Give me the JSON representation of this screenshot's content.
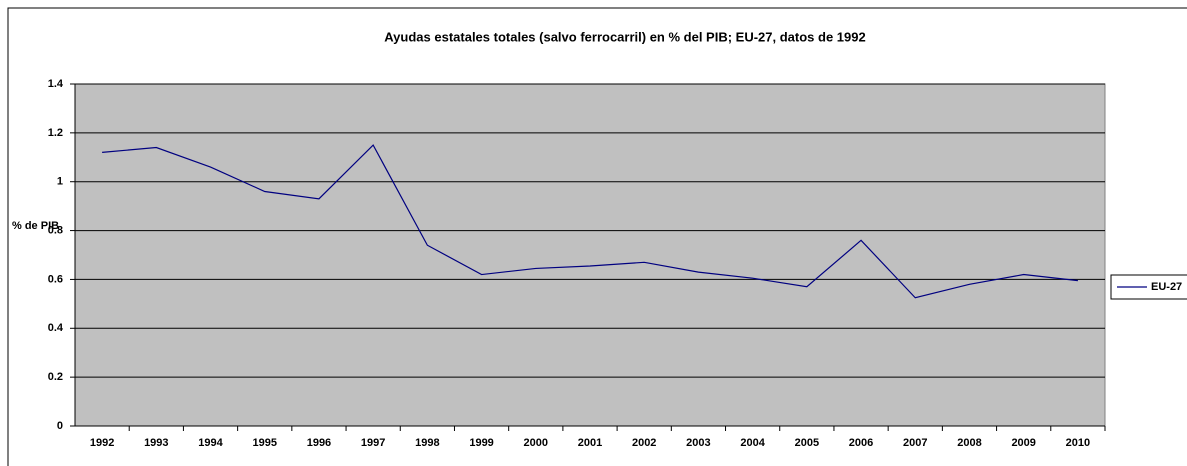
{
  "chart_data": {
    "type": "line",
    "title": "Ayudas estatales totales (salvo ferrocarril) en % del PIB; EU-27, datos de 1992",
    "y_label": "% de PIB",
    "categories": [
      "1992",
      "1993",
      "1994",
      "1995",
      "1996",
      "1997",
      "1998",
      "1999",
      "2000",
      "2001",
      "2002",
      "2003",
      "2004",
      "2005",
      "2006",
      "2007",
      "2008",
      "2009",
      "2010"
    ],
    "series": [
      {
        "name": "EU-27",
        "color": "#000080",
        "values": [
          1.12,
          1.14,
          1.06,
          0.96,
          0.93,
          1.15,
          0.74,
          0.62,
          0.645,
          0.655,
          0.67,
          0.63,
          0.605,
          0.57,
          0.76,
          0.525,
          0.58,
          0.62,
          0.595
        ]
      }
    ],
    "ylim": [
      0,
      1.4
    ],
    "yticks": [
      0,
      0.2,
      0.4,
      0.6,
      0.8,
      1,
      1.2,
      1.4
    ],
    "grid": true,
    "legend": "right",
    "plot_background": "#c0c0c0"
  }
}
